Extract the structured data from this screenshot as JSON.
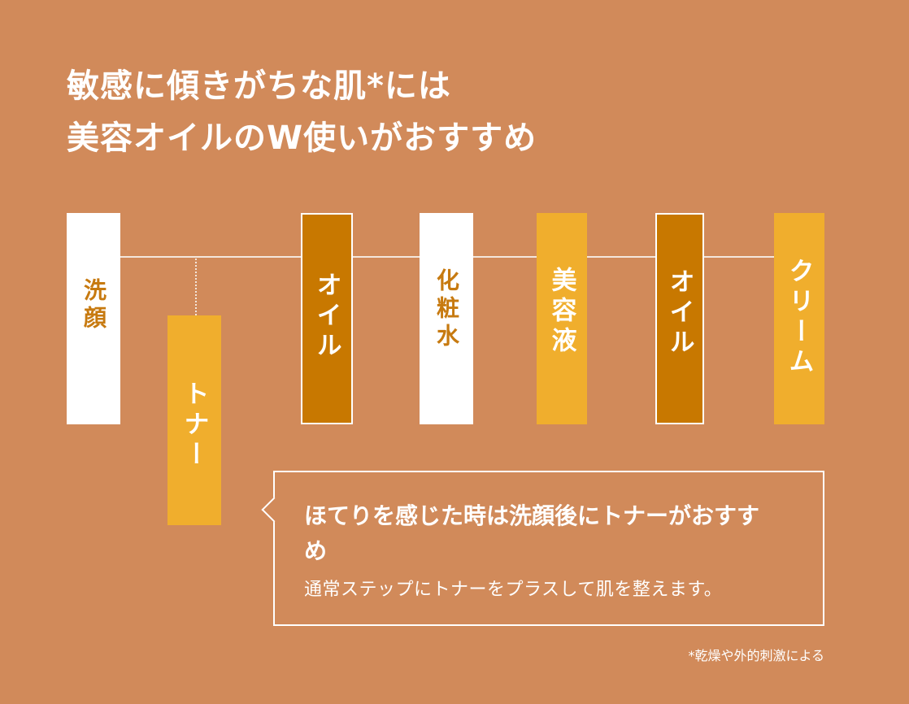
{
  "title": {
    "line1": "敏感に傾きがちな肌*には",
    "line2": "美容オイルのW使いがおすすめ"
  },
  "steps": [
    {
      "label": "洗顔",
      "style": "white"
    },
    {
      "label": "トナー",
      "style": "yellow"
    },
    {
      "label": "オイル",
      "style": "dark"
    },
    {
      "label": "化粧水",
      "style": "white"
    },
    {
      "label": "美容液",
      "style": "yellow"
    },
    {
      "label": "オイル",
      "style": "dark"
    },
    {
      "label": "クリーム",
      "style": "yellow"
    }
  ],
  "callout": {
    "heading": "ほてりを感じた時は洗顔後にトナーがおすすめ",
    "body": "通常ステップにトナーをプラスして肌を整えます。"
  },
  "footnote": "*乾燥や外的刺激による",
  "colors": {
    "background": "#d18a5a",
    "white_step": "#ffffff",
    "white_step_text": "#c77a10",
    "dark_step": "#c87800",
    "yellow_step": "#f0ae2d"
  }
}
